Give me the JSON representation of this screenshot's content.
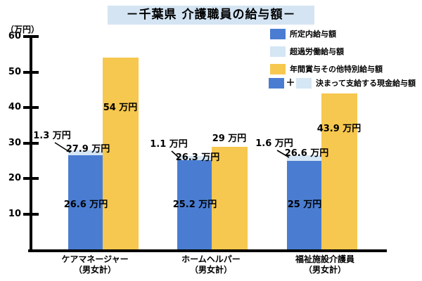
{
  "title": {
    "text": "－千葉県 介護職員の給与額－"
  },
  "axis": {
    "unit_label": "（万円）",
    "yticks": [
      60,
      50,
      40,
      30,
      20,
      10
    ],
    "ymax": 60
  },
  "colors": {
    "base_blue": "#4a7dd2",
    "overtime_lightblue": "#d5e6f5",
    "bonus_yellow": "#f6c84f",
    "title_bg": "#d4e4f3",
    "axis_black": "#000000"
  },
  "legend": {
    "plus_sign": "＋",
    "items": [
      {
        "key": "base",
        "label": "所定内給与額"
      },
      {
        "key": "overtime",
        "label": "超過労働給与額"
      },
      {
        "key": "bonus",
        "label": "年間賞与その他特別給与額"
      },
      {
        "key": "total",
        "label": "決まって支給する現金給与額"
      }
    ]
  },
  "chart_data": {
    "type": "bar",
    "title": "－千葉県 介護職員の給与額－",
    "ylabel": "（万円）",
    "ylim": [
      0,
      60
    ],
    "grid": false,
    "legend_position": "top-right",
    "categories": [
      {
        "line1": "ケアマネージャー",
        "line2": "（男女計）"
      },
      {
        "line1": "ホームヘルパー",
        "line2": "（男女計）"
      },
      {
        "line1": "福祉施設介護員",
        "line2": "（男女計）"
      }
    ],
    "series": [
      {
        "name": "所定内給与額",
        "values": [
          26.6,
          25.2,
          25
        ],
        "labels": [
          "26.6 万円",
          "25.2 万円",
          "25 万円"
        ]
      },
      {
        "name": "超過労働給与額",
        "values": [
          1.3,
          1.1,
          1.6
        ],
        "labels": [
          "1.3 万円",
          "1.1 万円",
          "1.6 万円"
        ]
      },
      {
        "name": "年間賞与その他特別給与額",
        "values": [
          54,
          29,
          43.9
        ],
        "labels": [
          "54 万円",
          "29 万円",
          "43.9 万円"
        ]
      }
    ],
    "totals": {
      "name": "決まって支給する現金給与額",
      "values": [
        27.9,
        26.3,
        26.6
      ],
      "labels": [
        "27.9 万円",
        "26.3 万円",
        "26.6 万円"
      ]
    }
  }
}
